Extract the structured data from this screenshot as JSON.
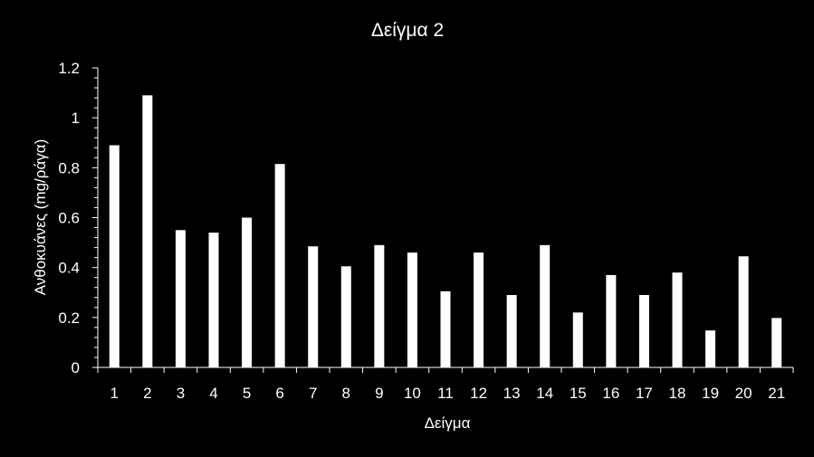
{
  "chart_data": {
    "type": "bar",
    "title": "Δείγμα 2",
    "xlabel": "Δείγμα",
    "ylabel": "Ανθοκυάνες (mg/ράγα)",
    "categories": [
      "1",
      "2",
      "3",
      "4",
      "5",
      "6",
      "7",
      "8",
      "9",
      "10",
      "11",
      "12",
      "13",
      "14",
      "15",
      "16",
      "17",
      "18",
      "19",
      "20",
      "21"
    ],
    "values": [
      0.89,
      1.09,
      0.55,
      0.54,
      0.6,
      0.815,
      0.485,
      0.405,
      0.49,
      0.46,
      0.305,
      0.46,
      0.29,
      0.49,
      0.22,
      0.37,
      0.29,
      0.38,
      0.148,
      0.445,
      0.198
    ],
    "yticks": [
      "0",
      "0.2",
      "0.4",
      "0.6",
      "0.8",
      "1",
      "1.2"
    ],
    "ylim": [
      0,
      1.2
    ],
    "grid": false,
    "legend": "none",
    "bar_color": "#ffffff",
    "background": "#000000",
    "axis_color": "#ffffff"
  }
}
